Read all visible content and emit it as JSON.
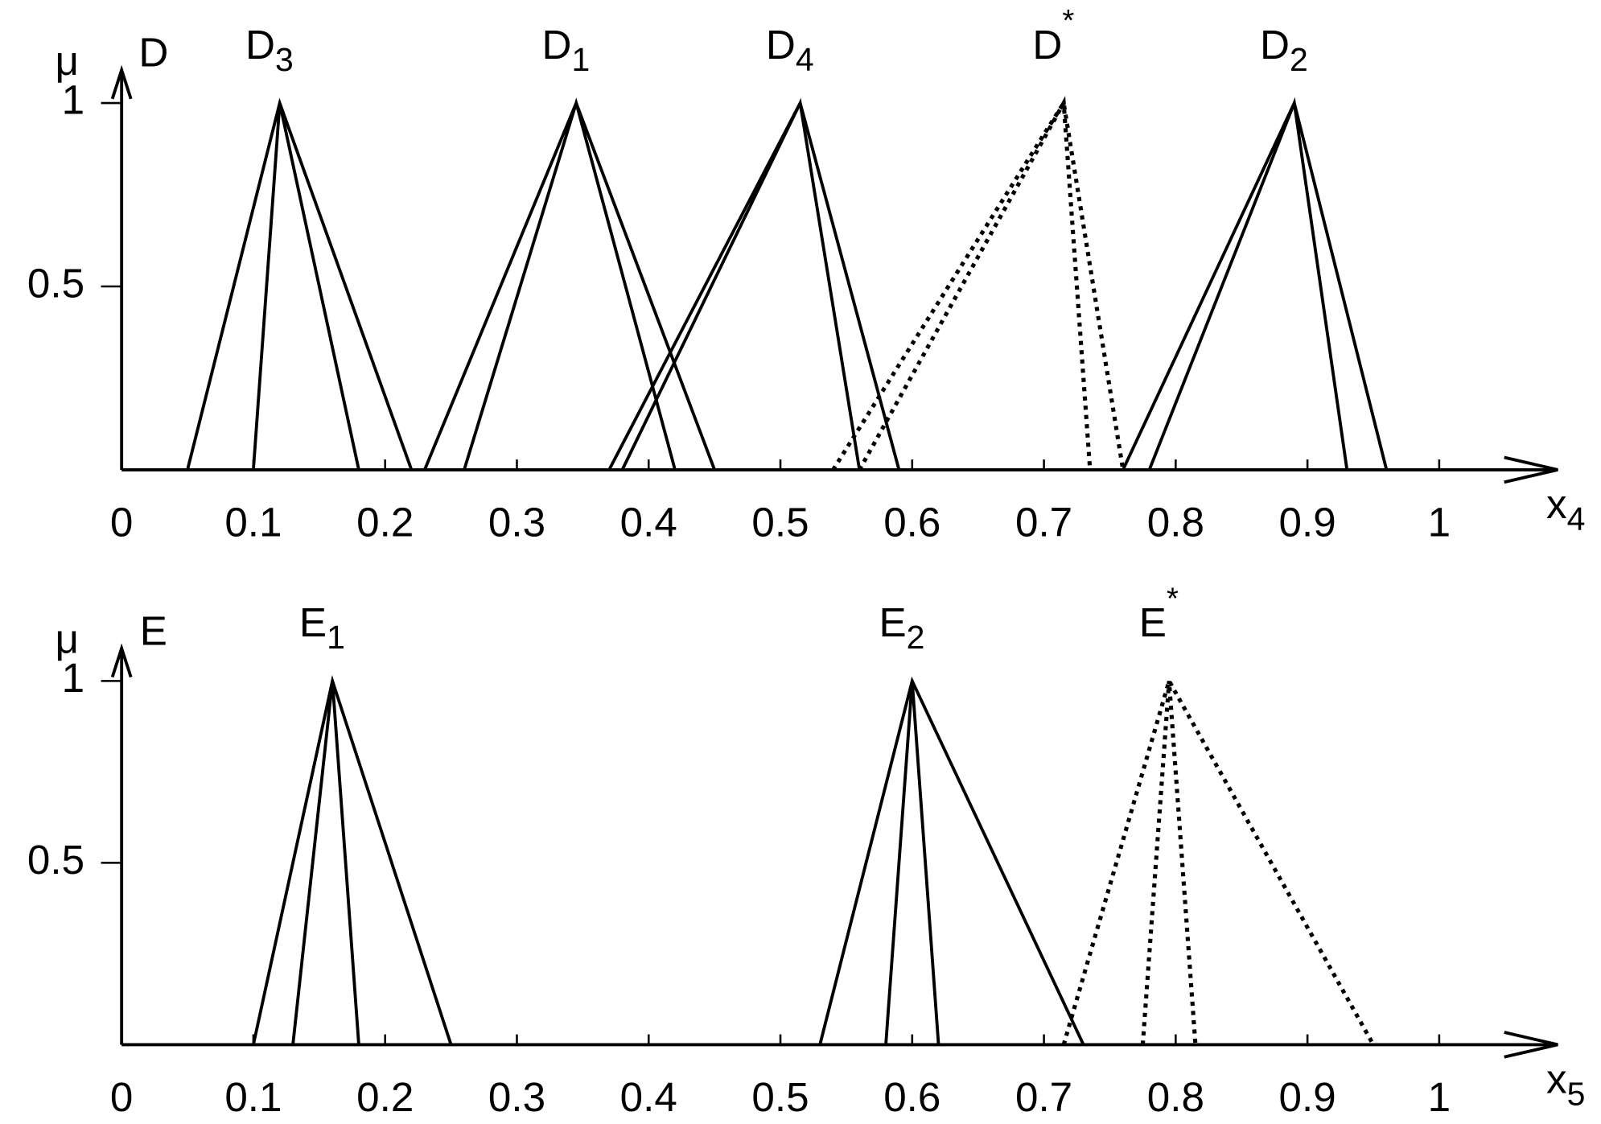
{
  "chart_data": [
    {
      "type": "line",
      "y_label": "μ",
      "y_label_sub": "D",
      "x_label": "x",
      "x_label_sub": "4",
      "xlim": [
        0,
        1.09
      ],
      "ylim": [
        0,
        1.09
      ],
      "xticks": [
        0,
        0.1,
        0.2,
        0.3,
        0.4,
        0.5,
        0.6,
        0.7,
        0.8,
        0.9,
        1
      ],
      "yticks": [
        0.5,
        1
      ],
      "series": [
        {
          "name": "D",
          "subscript": "3",
          "color": "#000000",
          "dotted": false,
          "x": [
            0.05,
            0.12,
            0.22,
            null,
            0.1,
            0.12,
            0.18
          ],
          "values": [
            0,
            1,
            0,
            null,
            0,
            1,
            0
          ]
        },
        {
          "name": "D",
          "subscript": "1",
          "color": "#000000",
          "dotted": false,
          "x": [
            0.23,
            0.345,
            0.45,
            null,
            0.26,
            0.345,
            0.42
          ],
          "values": [
            0,
            1,
            0,
            null,
            0,
            1,
            0
          ]
        },
        {
          "name": "D",
          "subscript": "4",
          "color": "#000000",
          "dotted": false,
          "x": [
            0.37,
            0.515,
            0.59,
            null,
            0.38,
            0.515,
            0.56
          ],
          "values": [
            0,
            1,
            0,
            null,
            0,
            1,
            0
          ]
        },
        {
          "name": "D",
          "superscript": "*",
          "color": "#000000",
          "dotted": true,
          "x": [
            0.54,
            0.715,
            0.76,
            null,
            0.56,
            0.715,
            0.735
          ],
          "values": [
            0,
            1,
            0,
            null,
            0,
            1,
            0
          ]
        },
        {
          "name": "D",
          "subscript": "2",
          "color": "#000000",
          "dotted": false,
          "x": [
            0.76,
            0.89,
            0.96,
            null,
            0.78,
            0.89,
            0.93
          ],
          "values": [
            0,
            1,
            0,
            null,
            0,
            1,
            0
          ]
        }
      ]
    },
    {
      "type": "line",
      "y_label": "μ",
      "y_label_sub": "E",
      "x_label": "x",
      "x_label_sub": "5",
      "xlim": [
        0,
        1.09
      ],
      "ylim": [
        0,
        1.09
      ],
      "xticks": [
        0,
        0.1,
        0.2,
        0.3,
        0.4,
        0.5,
        0.6,
        0.7,
        0.8,
        0.9,
        1
      ],
      "yticks": [
        0.5,
        1
      ],
      "series": [
        {
          "name": "E",
          "subscript": "1",
          "color": "#000000",
          "dotted": false,
          "x": [
            0.1,
            0.16,
            0.25,
            null,
            0.13,
            0.16,
            0.18
          ],
          "values": [
            0,
            1,
            0,
            null,
            0,
            1,
            0
          ]
        },
        {
          "name": "E",
          "subscript": "2",
          "color": "#000000",
          "dotted": false,
          "x": [
            0.53,
            0.6,
            0.73,
            null,
            0.58,
            0.6,
            0.62
          ],
          "values": [
            0,
            1,
            0,
            null,
            0,
            1,
            0
          ]
        },
        {
          "name": "E",
          "superscript": "*",
          "color": "#000000",
          "dotted": true,
          "x": [
            0.715,
            0.795,
            0.95,
            null,
            0.775,
            0.795,
            0.815
          ],
          "values": [
            0,
            1,
            0,
            null,
            0,
            1,
            0
          ]
        }
      ]
    }
  ]
}
